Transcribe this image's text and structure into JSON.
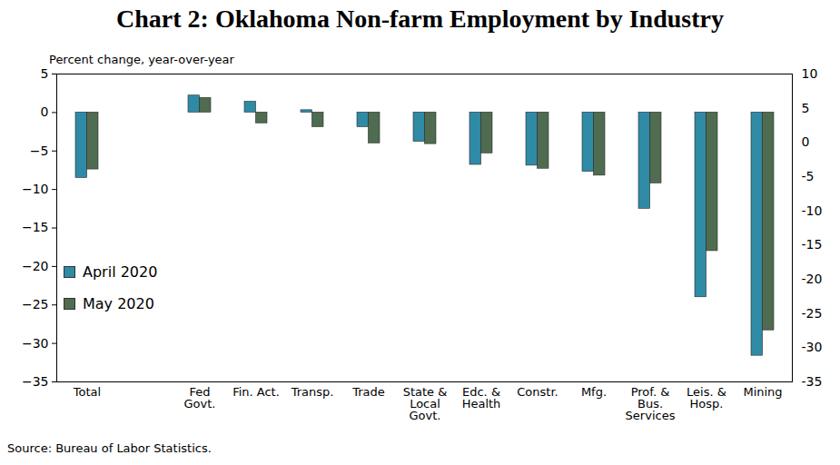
{
  "chart_data": {
    "type": "bar",
    "title": "Chart 2: Oklahoma Non-farm Employment by Industry",
    "subtitle": "Percent change, year-over-year",
    "caption": "Source: Bureau of Labor Statistics.",
    "categories": [
      "Total",
      null,
      "Fed\nGovt.",
      "Fin. Act.",
      "Transp.",
      "Trade",
      "State &\nLocal\nGovt.",
      "Edc. &\nHealth",
      "Constr.",
      "Mfg.",
      "Prof. &\nBus.\nServices",
      "Leis. &\nHosp.",
      "Mining"
    ],
    "series": [
      {
        "name": "April 2020",
        "color": "#2f8aa6",
        "values": [
          -8.5,
          null,
          2.2,
          1.4,
          0.3,
          -1.9,
          -3.8,
          -6.8,
          -6.9,
          -7.7,
          -12.5,
          -24.0,
          -31.6
        ]
      },
      {
        "name": "May 2020",
        "color": "#4f6b50",
        "values": [
          -7.4,
          null,
          1.9,
          -1.4,
          -1.9,
          -4.0,
          -4.1,
          -5.3,
          -7.3,
          -8.2,
          -9.2,
          -18.0,
          -28.3
        ]
      }
    ],
    "ylim": [
      -35,
      5
    ],
    "yticks": [
      -35,
      -30,
      -25,
      -20,
      -15,
      -10,
      -5,
      0,
      5
    ],
    "y2lim": [
      -35,
      10
    ],
    "y2ticks": [
      -35,
      -30,
      -25,
      -20,
      -15,
      -10,
      -5,
      0,
      5,
      10
    ],
    "legend": "lower left",
    "grid": false
  }
}
